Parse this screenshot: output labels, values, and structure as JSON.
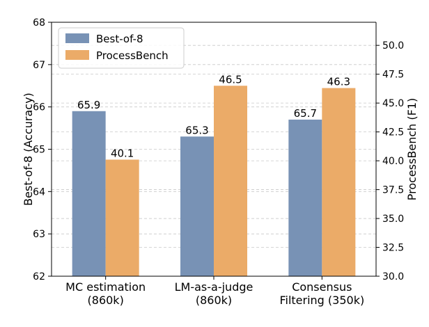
{
  "chart_data": {
    "type": "bar",
    "categories": [
      [
        "MC estimation",
        "(860k)"
      ],
      [
        "LM-as-a-judge",
        "(860k)"
      ],
      [
        "Consensus",
        "Filtering (350k)"
      ]
    ],
    "series": [
      {
        "name": "Best-of-8",
        "values": [
          65.9,
          65.3,
          65.7
        ],
        "axis": "left",
        "color": "#7892b5"
      },
      {
        "name": "ProcessBench",
        "values": [
          40.1,
          46.5,
          46.3
        ],
        "axis": "right",
        "color": "#ebab68"
      }
    ],
    "ylabel_left": "Best-of-8 (Accuracy)",
    "ylabel_right": "ProcessBench (F1)",
    "ylim_left": [
      62,
      68
    ],
    "ylim_right": [
      30,
      52
    ],
    "yticks_left": [
      "62",
      "63",
      "64",
      "65",
      "66",
      "67",
      "68"
    ],
    "yticks_right": [
      "30.0",
      "32.5",
      "35.0",
      "37.5",
      "40.0",
      "42.5",
      "45.0",
      "47.5",
      "50.0"
    ],
    "grid": true,
    "legend_position": "top-left"
  }
}
